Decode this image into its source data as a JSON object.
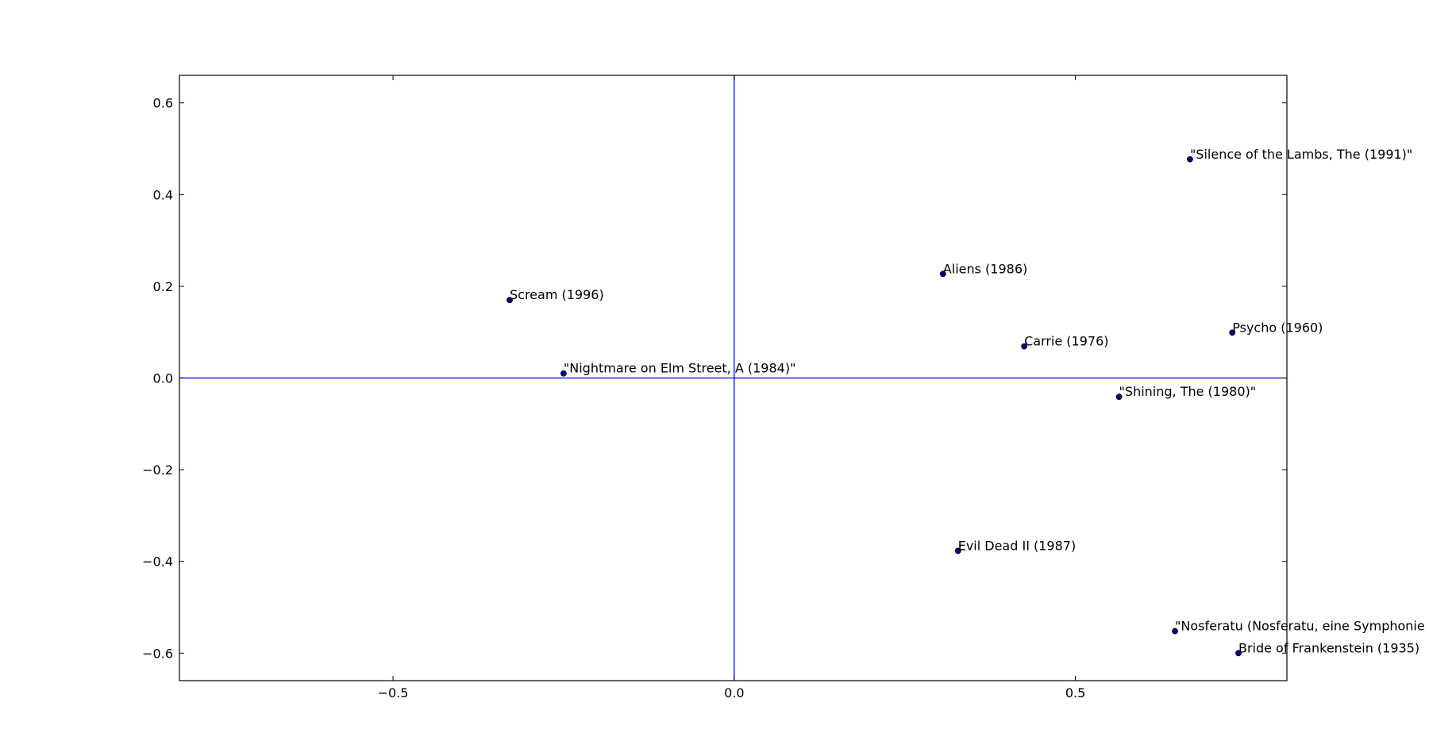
{
  "chart_data": {
    "type": "scatter",
    "title": "",
    "xlabel": "",
    "ylabel": "",
    "xlim": [
      -0.813,
      0.81
    ],
    "ylim": [
      -0.66,
      0.66
    ],
    "xticks": [
      -0.5,
      0.0,
      0.5
    ],
    "xtick_labels": [
      "−0.5",
      "0.0",
      "0.5"
    ],
    "yticks": [
      0.6,
      0.4,
      0.2,
      0.0,
      -0.2,
      -0.4,
      -0.6
    ],
    "ytick_labels": [
      "0.6",
      "0.4",
      "0.2",
      "0.0",
      "−0.2",
      "−0.4",
      "−0.6"
    ],
    "reference_lines": {
      "x": 0.0,
      "y": 0.0,
      "color": "#0000ff"
    },
    "marker_color": "#00008b",
    "grid": false,
    "points": [
      {
        "label": "\"Silence of the Lambs, The (1991)\"",
        "x": 0.668,
        "y": 0.477
      },
      {
        "label": "Aliens (1986)",
        "x": 0.306,
        "y": 0.227
      },
      {
        "label": "Scream (1996)",
        "x": -0.329,
        "y": 0.17
      },
      {
        "label": "Psycho (1960)",
        "x": 0.73,
        "y": 0.099
      },
      {
        "label": "Carrie (1976)",
        "x": 0.425,
        "y": 0.069
      },
      {
        "label": "\"Nightmare on Elm Street, A (1984)\"",
        "x": -0.25,
        "y": 0.01
      },
      {
        "label": "\"Shining, The (1980)\"",
        "x": 0.564,
        "y": -0.041
      },
      {
        "label": "Evil Dead II (1987)",
        "x": 0.328,
        "y": -0.377
      },
      {
        "label": "\"Nosferatu (Nosferatu, eine Symphonie",
        "x": 0.646,
        "y": -0.552
      },
      {
        "label": "Bride of Frankenstein (1935)",
        "x": 0.739,
        "y": -0.6
      }
    ]
  }
}
